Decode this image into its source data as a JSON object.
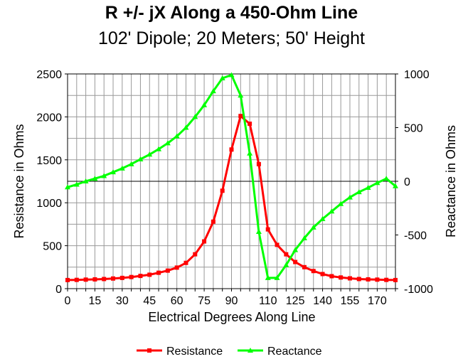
{
  "chart_data": {
    "type": "line",
    "title": "R +/- jX Along a 450-Ohm Line",
    "subtitle": "102' Dipole; 20 Meters; 50' Height",
    "xlabel": "Electrical Degrees Along Line",
    "ylabel_left": "Resistance in Ohms",
    "ylabel_right": "Reactance in Ohms",
    "xlim": [
      0,
      180
    ],
    "ylim_left": [
      0,
      2500
    ],
    "ylim_right": [
      -1000,
      1000
    ],
    "x_ticks": [
      0,
      15,
      30,
      45,
      60,
      75,
      90,
      110,
      125,
      140,
      155,
      170
    ],
    "y_ticks_left": [
      0,
      500,
      1000,
      1500,
      2000,
      2500
    ],
    "y_ticks_right": [
      -1000,
      -500,
      0,
      500,
      1000
    ],
    "grid": true,
    "legend_position": "bottom",
    "x": [
      0,
      5,
      10,
      15,
      20,
      25,
      30,
      35,
      40,
      45,
      50,
      55,
      60,
      65,
      70,
      75,
      80,
      85,
      90,
      95,
      100,
      105,
      110,
      115,
      120,
      125,
      130,
      135,
      140,
      145,
      150,
      155,
      160,
      165,
      170,
      175,
      180
    ],
    "series": [
      {
        "name": "Resistance",
        "axis": "left",
        "color": "#ff0000",
        "marker": "square",
        "values": [
          100,
          102,
          105,
          108,
          112,
          118,
          125,
          135,
          148,
          162,
          185,
          210,
          245,
          300,
          400,
          550,
          780,
          1140,
          1620,
          2010,
          1920,
          1450,
          690,
          510,
          400,
          310,
          250,
          205,
          170,
          145,
          130,
          120,
          112,
          108,
          105,
          102,
          100
        ]
      },
      {
        "name": "Reactance",
        "axis": "right",
        "color": "#00ff00",
        "marker": "triangle",
        "values": [
          -55,
          -30,
          0,
          25,
          50,
          85,
          120,
          160,
          205,
          250,
          300,
          355,
          420,
          500,
          600,
          710,
          840,
          960,
          990,
          800,
          260,
          -470,
          -900,
          -900,
          -780,
          -640,
          -530,
          -430,
          -350,
          -280,
          -210,
          -150,
          -100,
          -60,
          -15,
          25,
          -45
        ]
      }
    ]
  }
}
